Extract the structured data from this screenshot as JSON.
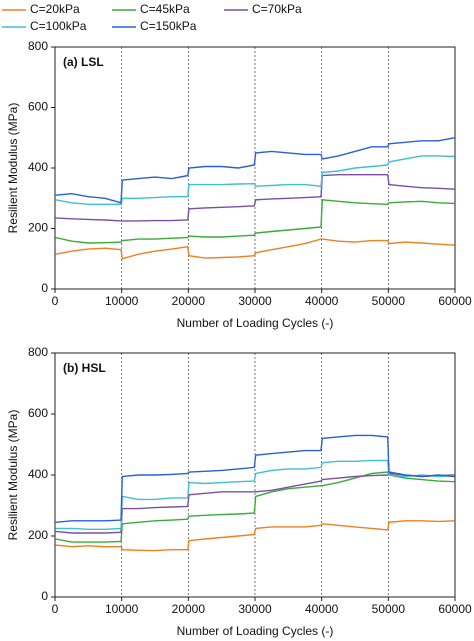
{
  "chart_data": [
    {
      "type": "line",
      "annotation": "(a) LSL",
      "xlabel": "Number of Loading Cycles (-)",
      "ylabel": "Resilient Modulus (MPa)",
      "xlim": [
        0,
        60000
      ],
      "ylim": [
        0,
        800
      ],
      "xticks": [
        0,
        10000,
        20000,
        30000,
        40000,
        50000,
        60000
      ],
      "yticks": [
        0,
        200,
        400,
        600,
        800
      ],
      "vlines": [
        10000,
        20000,
        30000,
        40000,
        50000
      ],
      "x": [
        100,
        2500,
        5000,
        7500,
        9900,
        10100,
        12500,
        15000,
        17500,
        19900,
        20100,
        22500,
        25000,
        27500,
        29900,
        30100,
        32500,
        35000,
        37500,
        39900,
        40100,
        42500,
        45000,
        47500,
        49900,
        50100,
        52500,
        55000,
        57500,
        59900
      ],
      "series": [
        {
          "name": "C=20kPa",
          "color": "#f07f1f",
          "values": [
            115,
            125,
            132,
            135,
            130,
            100,
            115,
            125,
            132,
            140,
            110,
            102,
            104,
            106,
            110,
            120,
            130,
            140,
            150,
            165,
            165,
            158,
            155,
            160,
            160,
            150,
            155,
            152,
            148,
            145
          ]
        },
        {
          "name": "C=45kPa",
          "color": "#3aaa3a",
          "values": [
            170,
            158,
            152,
            153,
            155,
            160,
            165,
            165,
            168,
            170,
            175,
            172,
            172,
            175,
            178,
            185,
            190,
            195,
            200,
            205,
            295,
            290,
            285,
            282,
            280,
            285,
            288,
            290,
            285,
            283
          ]
        },
        {
          "name": "C=70kPa",
          "color": "#7b4fa8",
          "values": [
            235,
            232,
            230,
            228,
            225,
            225,
            225,
            226,
            226,
            228,
            265,
            268,
            270,
            272,
            275,
            295,
            298,
            300,
            302,
            305,
            375,
            378,
            378,
            378,
            378,
            345,
            340,
            335,
            333,
            330
          ]
        },
        {
          "name": "C=100kPa",
          "color": "#3fc0d0",
          "values": [
            295,
            285,
            280,
            280,
            280,
            300,
            300,
            302,
            305,
            305,
            345,
            345,
            345,
            347,
            348,
            340,
            342,
            345,
            345,
            340,
            385,
            390,
            400,
            405,
            410,
            420,
            430,
            440,
            440,
            438
          ]
        },
        {
          "name": "C=150kPa",
          "color": "#2a5fd8",
          "values": [
            310,
            315,
            305,
            300,
            285,
            360,
            365,
            370,
            365,
            375,
            400,
            405,
            405,
            400,
            410,
            450,
            455,
            450,
            445,
            445,
            430,
            440,
            455,
            470,
            470,
            480,
            485,
            490,
            490,
            500
          ]
        }
      ]
    },
    {
      "type": "line",
      "annotation": "(b) HSL",
      "xlabel": "Number of Loading Cycles (-)",
      "ylabel": "Resilient Modulus (MPa)",
      "xlim": [
        0,
        60000
      ],
      "ylim": [
        0,
        800
      ],
      "xticks": [
        0,
        10000,
        20000,
        30000,
        40000,
        50000,
        60000
      ],
      "yticks": [
        0,
        200,
        400,
        600,
        800
      ],
      "vlines": [
        10000,
        20000,
        30000,
        40000,
        50000
      ],
      "x": [
        100,
        2500,
        5000,
        7500,
        9900,
        10100,
        12500,
        15000,
        17500,
        19900,
        20100,
        22500,
        25000,
        27500,
        29900,
        30100,
        32500,
        35000,
        37500,
        39900,
        40100,
        42500,
        45000,
        47500,
        49900,
        50100,
        52500,
        55000,
        57500,
        59900
      ],
      "series": [
        {
          "color": "#f07f1f",
          "values": [
            170,
            165,
            168,
            165,
            165,
            155,
            153,
            152,
            155,
            155,
            185,
            190,
            195,
            200,
            205,
            225,
            230,
            230,
            230,
            235,
            240,
            235,
            230,
            225,
            220,
            245,
            250,
            250,
            248,
            250
          ]
        },
        {
          "color": "#3aaa3a",
          "values": [
            190,
            180,
            180,
            180,
            182,
            240,
            245,
            250,
            252,
            255,
            265,
            268,
            270,
            272,
            275,
            330,
            345,
            355,
            360,
            365,
            365,
            375,
            390,
            405,
            410,
            400,
            390,
            385,
            380,
            378
          ]
        },
        {
          "color": "#7b4fa8",
          "values": [
            215,
            210,
            210,
            210,
            212,
            290,
            290,
            293,
            295,
            297,
            335,
            340,
            345,
            345,
            345,
            345,
            350,
            360,
            370,
            380,
            385,
            390,
            395,
            398,
            400,
            405,
            400,
            395,
            398,
            400
          ]
        },
        {
          "color": "#3fc0d0",
          "values": [
            225,
            225,
            222,
            222,
            225,
            330,
            320,
            320,
            325,
            325,
            375,
            372,
            375,
            378,
            380,
            405,
            415,
            420,
            420,
            425,
            440,
            445,
            445,
            448,
            448,
            400,
            395,
            400,
            395,
            398
          ]
        },
        {
          "color": "#2a5fd8",
          "values": [
            245,
            250,
            250,
            250,
            252,
            395,
            400,
            400,
            402,
            405,
            410,
            412,
            415,
            420,
            425,
            465,
            470,
            475,
            480,
            480,
            520,
            525,
            530,
            530,
            525,
            410,
            400,
            395,
            400,
            395
          ]
        }
      ]
    }
  ]
}
